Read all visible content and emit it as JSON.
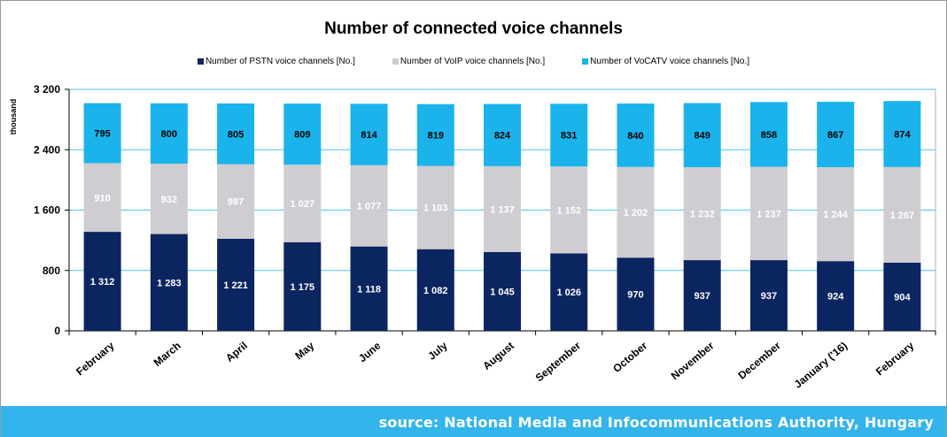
{
  "colors": {
    "pstn": "#0b2560",
    "voip": "#cfcdd2",
    "vocatv": "#1ab3ec",
    "grid": "#4cc6e6",
    "source_band": "#33b4ea"
  },
  "source": "source: National Media and Infocommunications Authority, Hungary",
  "chart_data": {
    "type": "bar",
    "stacked": true,
    "title": "Number of connected voice channels",
    "ylabel": "thousand",
    "xlabel": "",
    "ylim": [
      0,
      3200
    ],
    "yticks": [
      0,
      800,
      1600,
      2400,
      3200
    ],
    "ytick_labels": [
      "0",
      "800",
      "1 600",
      "2 400",
      "3 200"
    ],
    "grid": true,
    "legend_position": "top",
    "categories": [
      "February",
      "March",
      "April",
      "May",
      "June",
      "July",
      "August",
      "September",
      "October",
      "November",
      "December",
      "January ('16)",
      "February"
    ],
    "series": [
      {
        "name": "Number of PSTN voice channels [No.]",
        "color_key": "pstn",
        "values": [
          1312,
          1283,
          1221,
          1175,
          1118,
          1082,
          1045,
          1026,
          970,
          937,
          937,
          924,
          904
        ],
        "labels": [
          "1 312",
          "1 283",
          "1 221",
          "1 175",
          "1 118",
          "1 082",
          "1 045",
          "1 026",
          "970",
          "937",
          "937",
          "924",
          "904"
        ]
      },
      {
        "name": "Number of VoIP voice channels [No.]",
        "color_key": "voip",
        "values": [
          910,
          932,
          987,
          1027,
          1077,
          1103,
          1137,
          1152,
          1202,
          1232,
          1237,
          1244,
          1267
        ],
        "labels": [
          "910",
          "932",
          "987",
          "1 027",
          "1 077",
          "1 103",
          "1 137",
          "1 152",
          "1 202",
          "1 232",
          "1 237",
          "1 244",
          "1 267"
        ]
      },
      {
        "name": "Number of VoCATV voice channels [No.]",
        "color_key": "vocatv",
        "values": [
          795,
          800,
          805,
          809,
          814,
          819,
          824,
          831,
          840,
          849,
          858,
          867,
          874
        ],
        "labels": [
          "795",
          "800",
          "805",
          "809",
          "814",
          "819",
          "824",
          "831",
          "840",
          "849",
          "858",
          "867",
          "874"
        ]
      }
    ]
  }
}
